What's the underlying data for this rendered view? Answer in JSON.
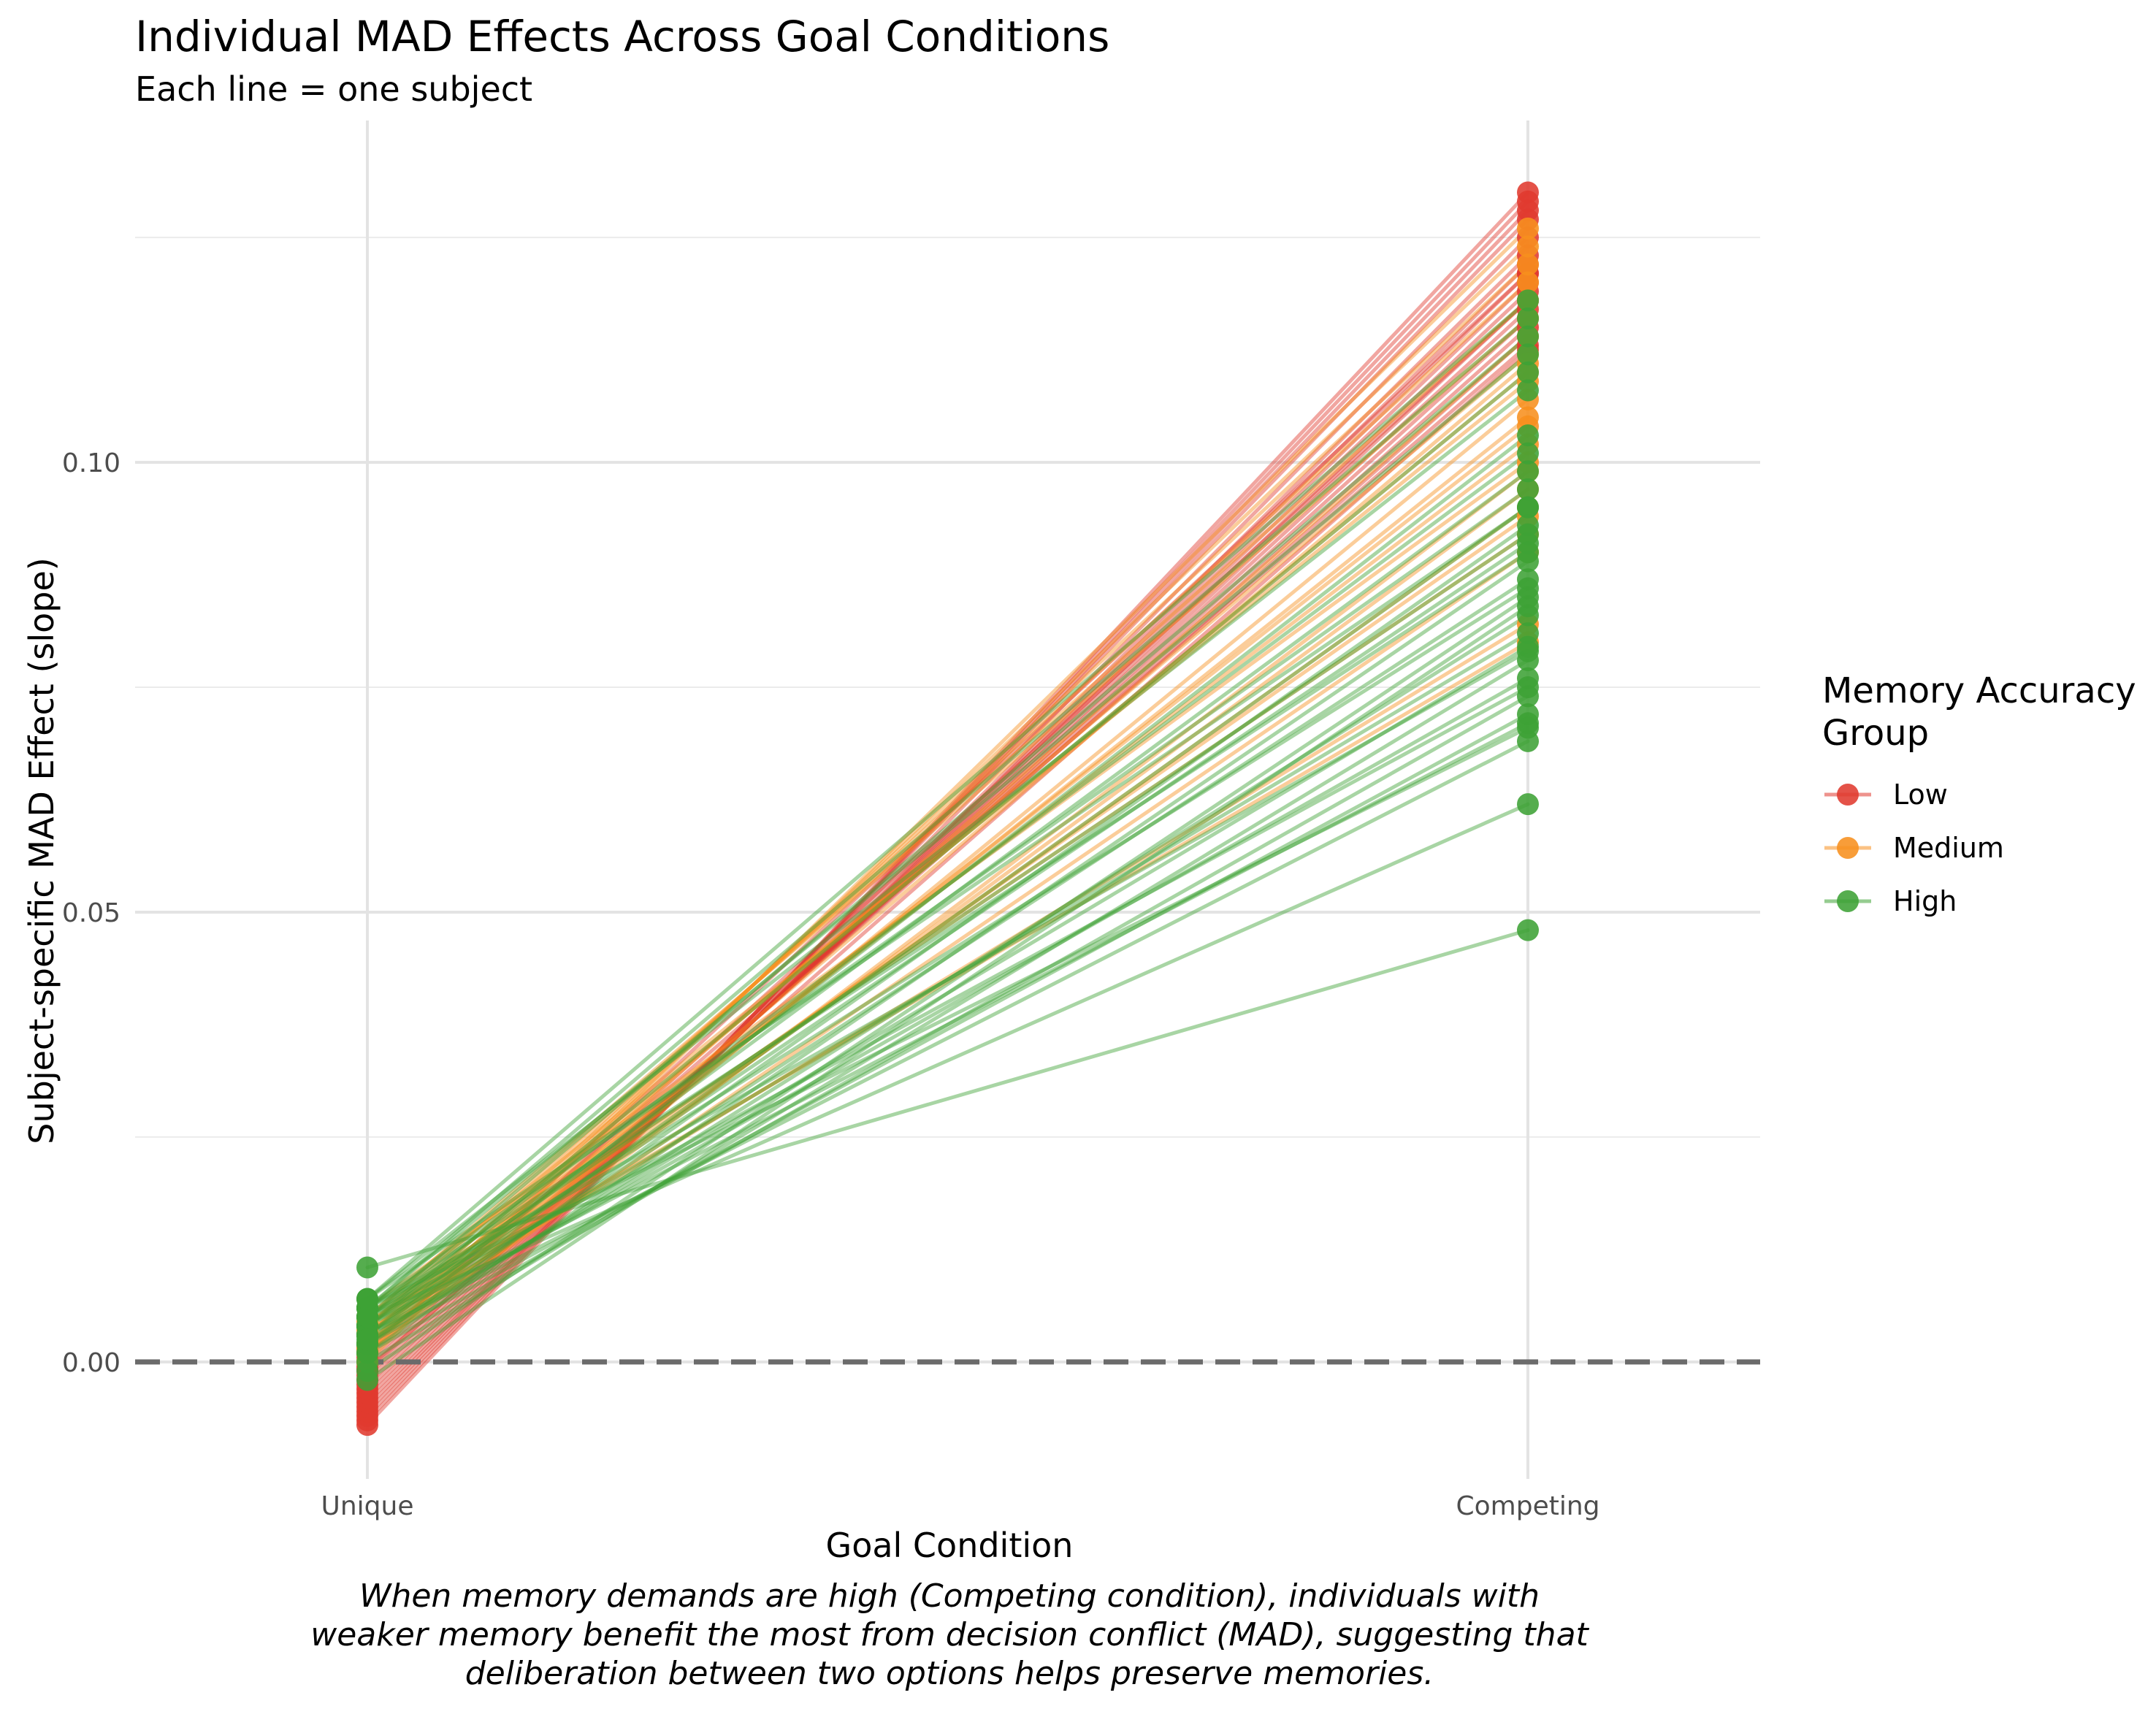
{
  "chart_data": {
    "type": "line",
    "title": "Individual MAD Effects Across Goal Conditions",
    "subtitle": "Each line = one subject",
    "xlabel": "Goal Condition",
    "ylabel": "Subject-specific MAD Effect (slope)",
    "categories": [
      "Unique",
      "Competing"
    ],
    "ylim": [
      -0.013,
      0.138
    ],
    "yticks": [
      0.0,
      0.05,
      0.1
    ],
    "ytick_labels": [
      "0.00",
      "0.05",
      "0.10"
    ],
    "reference_line": {
      "y": 0.0,
      "style": "dashed"
    },
    "grid": true,
    "legend": {
      "title": "Memory Accuracy Group",
      "title_lines": [
        "Memory Accuracy",
        "Group"
      ],
      "position": "right",
      "entries": [
        {
          "label": "Low",
          "color": "#e03a2f"
        },
        {
          "label": "Medium",
          "color": "#f7901e"
        },
        {
          "label": "High",
          "color": "#3ea235"
        }
      ]
    },
    "caption_lines": [
      "When memory demands are high (Competing condition), individuals with",
      "weaker memory benefit the most from decision conflict (MAD), suggesting that",
      "deliberation between two options helps preserve memories."
    ],
    "series": [
      {
        "group": "Low",
        "values": [
          [
            -0.007,
            0.13
          ],
          [
            -0.0065,
            0.129
          ],
          [
            -0.006,
            0.128
          ],
          [
            -0.0055,
            0.127
          ],
          [
            -0.005,
            0.125
          ],
          [
            -0.0045,
            0.123
          ],
          [
            -0.004,
            0.122
          ],
          [
            -0.0035,
            0.121
          ],
          [
            -0.003,
            0.12
          ],
          [
            -0.0025,
            0.119
          ],
          [
            -0.002,
            0.118
          ],
          [
            -0.0015,
            0.117
          ],
          [
            -0.001,
            0.116
          ],
          [
            -0.0005,
            0.115
          ],
          [
            0.0,
            0.114
          ],
          [
            0.001,
            0.121
          ],
          [
            0.0015,
            0.113
          ],
          [
            -0.0008,
            0.1125
          ],
          [
            0.0005,
            0.118
          ]
        ]
      },
      {
        "group": "Medium",
        "values": [
          [
            0.0,
            0.126
          ],
          [
            0.001,
            0.124
          ],
          [
            0.002,
            0.122
          ],
          [
            0.003,
            0.12
          ],
          [
            0.004,
            0.118
          ],
          [
            0.005,
            0.116
          ],
          [
            0.002,
            0.114
          ],
          [
            0.003,
            0.112
          ],
          [
            0.004,
            0.11
          ],
          [
            0.005,
            0.109
          ],
          [
            0.001,
            0.107
          ],
          [
            0.002,
            0.105
          ],
          [
            0.003,
            0.104
          ],
          [
            0.004,
            0.102
          ],
          [
            0.006,
            0.1
          ],
          [
            0.001,
            0.099
          ],
          [
            0.002,
            0.097
          ],
          [
            0.003,
            0.095
          ],
          [
            0.004,
            0.094
          ],
          [
            0.005,
            0.092
          ],
          [
            0.002,
            0.09
          ],
          [
            0.0035,
            0.082
          ],
          [
            0.0045,
            0.08
          ],
          [
            0.0015,
            0.111
          ]
        ]
      },
      {
        "group": "High",
        "values": [
          [
            0.007,
            0.118
          ],
          [
            0.006,
            0.116
          ],
          [
            0.005,
            0.114
          ],
          [
            0.006,
            0.112
          ],
          [
            0.004,
            0.11
          ],
          [
            0.007,
            0.108
          ],
          [
            0.003,
            0.103
          ],
          [
            0.005,
            0.101
          ],
          [
            0.004,
            0.099
          ],
          [
            0.006,
            0.097
          ],
          [
            0.003,
            0.095
          ],
          [
            0.002,
            0.093
          ],
          [
            0.005,
            0.092
          ],
          [
            0.004,
            0.091
          ],
          [
            0.006,
            0.09
          ],
          [
            0.001,
            0.089
          ],
          [
            0.003,
            0.087
          ],
          [
            0.005,
            0.086
          ],
          [
            -0.002,
            0.084
          ],
          [
            0.002,
            0.083
          ],
          [
            0.004,
            0.081
          ],
          [
            0.006,
            0.079
          ],
          [
            0.0,
            0.078
          ],
          [
            0.003,
            0.076
          ],
          [
            0.005,
            0.075
          ],
          [
            0.001,
            0.074
          ],
          [
            0.002,
            0.072
          ],
          [
            0.004,
            0.071
          ],
          [
            0.006,
            0.0705
          ],
          [
            0.003,
            0.069
          ],
          [
            0.005,
            0.062
          ],
          [
            0.0105,
            0.048
          ],
          [
            0.007,
            0.095
          ],
          [
            -0.001,
            0.085
          ],
          [
            0.0025,
            0.0795
          ]
        ]
      }
    ]
  }
}
